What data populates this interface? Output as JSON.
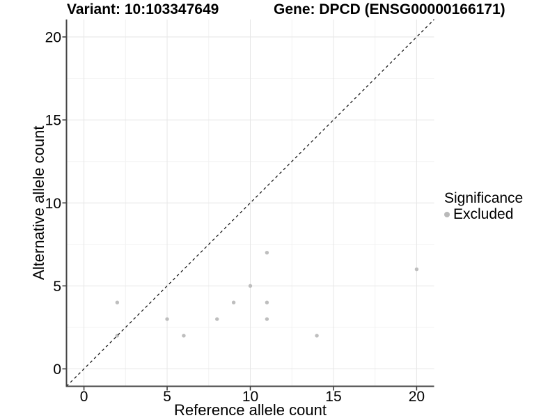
{
  "chart_data": {
    "type": "scatter",
    "title_left": "Variant: 10:103347649",
    "title_right": "Gene: DPCD (ENSG00000166171)",
    "xlabel": "Reference allele count",
    "ylabel": "Alternative allele count",
    "xlim": [
      -1.05,
      21.05
    ],
    "ylim": [
      -1.05,
      21.05
    ],
    "x_major_ticks": [
      0,
      5,
      10,
      15,
      20
    ],
    "y_major_ticks": [
      0,
      5,
      10,
      15,
      20
    ],
    "x_minor_gridlines": [
      2.5,
      7.5,
      12.5,
      17.5
    ],
    "y_minor_gridlines": [
      2.5,
      7.5,
      12.5,
      17.5
    ],
    "grid": true,
    "series": [
      {
        "name": "Excluded",
        "color": "#bebebe",
        "points": [
          [
            2,
            2
          ],
          [
            2,
            4
          ],
          [
            5,
            3
          ],
          [
            6,
            2
          ],
          [
            8,
            3
          ],
          [
            9,
            4
          ],
          [
            10,
            5
          ],
          [
            11,
            3
          ],
          [
            11,
            4
          ],
          [
            11,
            7
          ],
          [
            14,
            2
          ],
          [
            20,
            6
          ]
        ]
      }
    ],
    "reference_line": {
      "slope": 1,
      "intercept": 0,
      "style": "dashed",
      "color": "#1a1a1a"
    },
    "legend": {
      "title": "Significance",
      "position": "right",
      "items": [
        {
          "label": "Excluded",
          "color": "#b9b9b9"
        }
      ]
    },
    "colors": {
      "background": "#ffffff",
      "point": "#bebebe",
      "grid_major": "#e6e6e6",
      "grid_minor": "#f2f2f2",
      "axis_line": "#464646",
      "tick": "#333333",
      "text": "#000000"
    }
  }
}
